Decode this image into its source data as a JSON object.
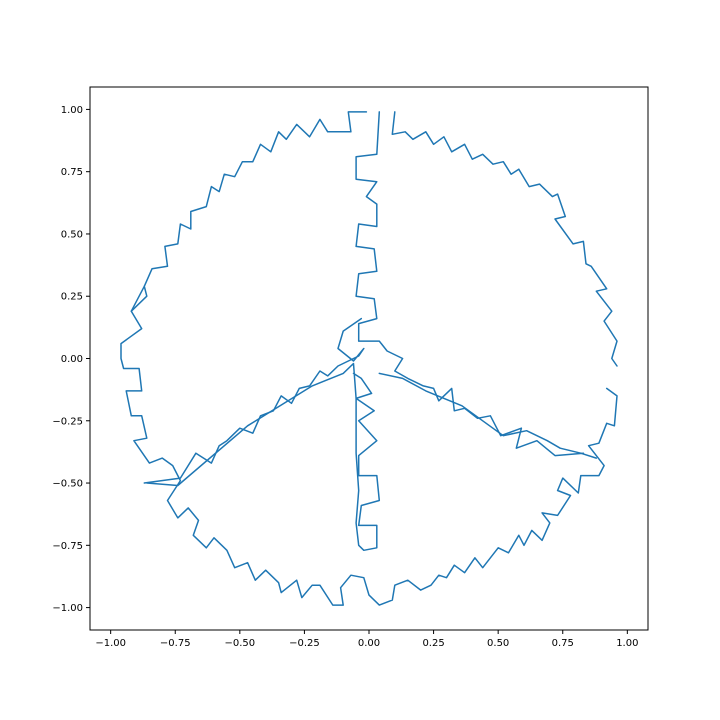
{
  "chart_data": {
    "type": "line",
    "title": "",
    "xlabel": "",
    "ylabel": "",
    "xlim": [
      -1.08,
      1.08
    ],
    "ylim": [
      -1.09,
      1.09
    ],
    "xticks": [
      -1.0,
      -0.75,
      -0.5,
      -0.25,
      0.0,
      0.25,
      0.5,
      0.75,
      1.0
    ],
    "yticks": [
      -1.0,
      -0.75,
      -0.5,
      -0.25,
      0.0,
      0.25,
      0.5,
      0.75,
      1.0
    ],
    "xtick_labels": [
      "−1.00",
      "−0.75",
      "−0.50",
      "−0.25",
      "0.00",
      "0.25",
      "0.50",
      "0.75",
      "1.00"
    ],
    "ytick_labels": [
      "−1.00",
      "−0.75",
      "−0.50",
      "−0.25",
      "0.00",
      "0.25",
      "0.50",
      "0.75",
      "1.00"
    ],
    "grid": false,
    "legend": "none",
    "series": [
      {
        "color": "#1f77b4",
        "points": [
          [
            -0.01,
            0.99
          ],
          [
            -0.08,
            0.99
          ],
          [
            -0.07,
            0.91
          ],
          [
            -0.16,
            0.91
          ],
          [
            -0.19,
            0.96
          ],
          [
            -0.23,
            0.89
          ],
          [
            -0.28,
            0.94
          ],
          [
            -0.32,
            0.88
          ],
          [
            -0.35,
            0.91
          ],
          [
            -0.38,
            0.83
          ],
          [
            -0.42,
            0.86
          ],
          [
            -0.45,
            0.79
          ],
          [
            -0.49,
            0.79
          ],
          [
            -0.52,
            0.73
          ],
          [
            -0.56,
            0.74
          ],
          [
            -0.58,
            0.67
          ],
          [
            -0.61,
            0.69
          ],
          [
            -0.63,
            0.61
          ],
          [
            -0.69,
            0.59
          ],
          [
            -0.69,
            0.52
          ],
          [
            -0.73,
            0.54
          ],
          [
            -0.74,
            0.46
          ],
          [
            -0.79,
            0.45
          ],
          [
            -0.78,
            0.37
          ],
          [
            -0.84,
            0.36
          ],
          [
            -0.87,
            0.29
          ],
          [
            -0.86,
            0.25
          ],
          [
            -0.92,
            0.19
          ],
          [
            -0.88,
            0.12
          ],
          [
            -0.96,
            0.06
          ],
          [
            -0.96,
            0.0
          ],
          [
            -0.95,
            -0.04
          ],
          [
            -0.89,
            -0.04
          ],
          [
            -0.88,
            -0.13
          ],
          [
            -0.94,
            -0.13
          ],
          [
            -0.92,
            -0.23
          ],
          [
            -0.88,
            -0.23
          ],
          [
            -0.86,
            -0.32
          ],
          [
            -0.91,
            -0.33
          ],
          [
            -0.85,
            -0.42
          ],
          [
            -0.8,
            -0.4
          ],
          [
            -0.76,
            -0.43
          ],
          [
            -0.73,
            -0.49
          ],
          [
            -0.78,
            -0.57
          ],
          [
            -0.74,
            -0.64
          ],
          [
            -0.7,
            -0.6
          ],
          [
            -0.66,
            -0.65
          ],
          [
            -0.68,
            -0.71
          ],
          [
            -0.63,
            -0.76
          ],
          [
            -0.6,
            -0.72
          ],
          [
            -0.55,
            -0.77
          ],
          [
            -0.52,
            -0.84
          ],
          [
            -0.47,
            -0.82
          ],
          [
            -0.44,
            -0.89
          ],
          [
            -0.4,
            -0.85
          ],
          [
            -0.35,
            -0.9
          ],
          [
            -0.34,
            -0.94
          ],
          [
            -0.28,
            -0.89
          ],
          [
            -0.26,
            -0.96
          ],
          [
            -0.22,
            -0.91
          ],
          [
            -0.19,
            -0.91
          ],
          [
            -0.14,
            -0.99
          ],
          [
            -0.1,
            -0.99
          ],
          [
            -0.11,
            -0.92
          ],
          [
            -0.07,
            -0.87
          ],
          [
            -0.02,
            -0.88
          ],
          [
            0.0,
            -0.95
          ],
          [
            0.04,
            -0.99
          ],
          [
            0.09,
            -0.97
          ],
          [
            0.1,
            -0.91
          ],
          [
            0.15,
            -0.89
          ],
          [
            0.2,
            -0.93
          ],
          [
            0.24,
            -0.91
          ],
          [
            0.27,
            -0.87
          ],
          [
            0.3,
            -0.88
          ],
          [
            0.33,
            -0.83
          ],
          [
            0.37,
            -0.86
          ],
          [
            0.41,
            -0.8
          ],
          [
            0.44,
            -0.84
          ],
          [
            0.5,
            -0.76
          ],
          [
            0.54,
            -0.78
          ],
          [
            0.58,
            -0.71
          ],
          [
            0.6,
            -0.75
          ],
          [
            0.63,
            -0.69
          ],
          [
            0.67,
            -0.73
          ],
          [
            0.7,
            -0.66
          ],
          [
            0.67,
            -0.62
          ],
          [
            0.73,
            -0.63
          ],
          [
            0.78,
            -0.55
          ],
          [
            0.73,
            -0.53
          ],
          [
            0.75,
            -0.48
          ],
          [
            0.81,
            -0.54
          ],
          [
            0.82,
            -0.47
          ],
          [
            0.89,
            -0.47
          ],
          [
            0.91,
            -0.43
          ],
          [
            0.85,
            -0.35
          ],
          [
            0.89,
            -0.34
          ],
          [
            0.92,
            -0.26
          ],
          [
            0.95,
            -0.27
          ],
          [
            0.96,
            -0.15
          ],
          [
            0.92,
            -0.12
          ]
        ]
      },
      {
        "color": "#1f77b4",
        "points": [
          [
            0.1,
            0.99
          ],
          [
            0.09,
            0.9
          ],
          [
            0.14,
            0.91
          ],
          [
            0.17,
            0.88
          ],
          [
            0.22,
            0.91
          ],
          [
            0.25,
            0.86
          ],
          [
            0.29,
            0.89
          ],
          [
            0.32,
            0.83
          ],
          [
            0.37,
            0.86
          ],
          [
            0.4,
            0.8
          ],
          [
            0.44,
            0.82
          ],
          [
            0.48,
            0.78
          ],
          [
            0.52,
            0.79
          ],
          [
            0.55,
            0.74
          ],
          [
            0.58,
            0.76
          ],
          [
            0.62,
            0.69
          ],
          [
            0.66,
            0.7
          ],
          [
            0.71,
            0.65
          ],
          [
            0.73,
            0.66
          ],
          [
            0.76,
            0.57
          ],
          [
            0.72,
            0.56
          ],
          [
            0.79,
            0.46
          ],
          [
            0.83,
            0.47
          ],
          [
            0.84,
            0.38
          ],
          [
            0.86,
            0.37
          ],
          [
            0.92,
            0.28
          ],
          [
            0.88,
            0.27
          ],
          [
            0.94,
            0.19
          ],
          [
            0.91,
            0.15
          ],
          [
            0.96,
            0.07
          ],
          [
            0.94,
            0.0
          ],
          [
            0.96,
            -0.03
          ]
        ]
      },
      {
        "color": "#1f77b4",
        "points": [
          [
            0.04,
            0.99
          ],
          [
            0.03,
            0.82
          ],
          [
            -0.05,
            0.81
          ],
          [
            -0.05,
            0.72
          ],
          [
            0.03,
            0.71
          ],
          [
            -0.01,
            0.65
          ],
          [
            0.03,
            0.62
          ],
          [
            0.03,
            0.53
          ],
          [
            -0.04,
            0.54
          ],
          [
            -0.05,
            0.45
          ],
          [
            0.02,
            0.44
          ],
          [
            0.03,
            0.35
          ],
          [
            -0.04,
            0.34
          ],
          [
            -0.05,
            0.25
          ],
          [
            0.02,
            0.24
          ],
          [
            0.03,
            0.16
          ],
          [
            -0.04,
            0.14
          ],
          [
            -0.04,
            0.07
          ],
          [
            0.04,
            0.07
          ],
          [
            0.07,
            0.03
          ],
          [
            0.13,
            0.0
          ],
          [
            0.1,
            -0.05
          ],
          [
            0.15,
            -0.08
          ],
          [
            0.21,
            -0.11
          ],
          [
            0.25,
            -0.12
          ],
          [
            0.27,
            -0.17
          ],
          [
            0.32,
            -0.12
          ],
          [
            0.33,
            -0.21
          ],
          [
            0.37,
            -0.2
          ],
          [
            0.42,
            -0.24
          ],
          [
            0.47,
            -0.23
          ],
          [
            0.51,
            -0.31
          ],
          [
            0.59,
            -0.28
          ],
          [
            0.57,
            -0.36
          ],
          [
            0.65,
            -0.33
          ],
          [
            0.72,
            -0.39
          ],
          [
            0.83,
            -0.38
          ]
        ]
      },
      {
        "color": "#1f77b4",
        "points": [
          [
            -0.03,
            0.16
          ],
          [
            -0.1,
            0.11
          ],
          [
            -0.12,
            0.04
          ],
          [
            -0.06,
            -0.01
          ],
          [
            -0.02,
            0.04
          ],
          [
            -0.04,
            0.01
          ],
          [
            -0.12,
            -0.03
          ],
          [
            -0.16,
            -0.07
          ],
          [
            -0.19,
            -0.05
          ],
          [
            -0.23,
            -0.11
          ],
          [
            -0.27,
            -0.12
          ],
          [
            -0.3,
            -0.18
          ],
          [
            -0.34,
            -0.15
          ],
          [
            -0.37,
            -0.21
          ],
          [
            -0.42,
            -0.23
          ],
          [
            -0.45,
            -0.3
          ],
          [
            -0.5,
            -0.28
          ],
          [
            -0.55,
            -0.33
          ],
          [
            -0.58,
            -0.35
          ],
          [
            -0.61,
            -0.42
          ],
          [
            -0.67,
            -0.38
          ],
          [
            -0.73,
            -0.48
          ],
          [
            -0.87,
            -0.5
          ]
        ]
      },
      {
        "color": "#1f77b4",
        "points": [
          [
            -0.86,
            -0.5
          ],
          [
            -0.74,
            -0.51
          ],
          [
            -0.47,
            -0.27
          ],
          [
            -0.22,
            -0.11
          ],
          [
            -0.1,
            -0.06
          ],
          [
            -0.06,
            -0.02
          ],
          [
            -0.05,
            -0.16
          ],
          [
            -0.05,
            -0.38
          ],
          [
            -0.04,
            -0.53
          ],
          [
            -0.05,
            -0.66
          ],
          [
            -0.04,
            -0.75
          ],
          [
            -0.02,
            -0.77
          ],
          [
            0.03,
            -0.76
          ],
          [
            0.03,
            -0.67
          ],
          [
            -0.04,
            -0.67
          ],
          [
            -0.03,
            -0.59
          ],
          [
            0.04,
            -0.57
          ],
          [
            0.03,
            -0.47
          ],
          [
            -0.04,
            -0.47
          ],
          [
            -0.04,
            -0.39
          ],
          [
            0.03,
            -0.33
          ],
          [
            -0.04,
            -0.25
          ],
          [
            0.02,
            -0.21
          ],
          [
            -0.05,
            -0.16
          ],
          [
            0.01,
            -0.14
          ],
          [
            -0.03,
            -0.08
          ],
          [
            -0.06,
            -0.06
          ]
        ]
      },
      {
        "color": "#1f77b4",
        "points": [
          [
            0.04,
            -0.06
          ],
          [
            0.13,
            -0.08
          ],
          [
            0.22,
            -0.13
          ],
          [
            0.36,
            -0.19
          ],
          [
            0.44,
            -0.25
          ],
          [
            0.52,
            -0.31
          ],
          [
            0.61,
            -0.29
          ],
          [
            0.69,
            -0.33
          ],
          [
            0.74,
            -0.36
          ],
          [
            0.82,
            -0.38
          ],
          [
            0.88,
            -0.4
          ]
        ]
      },
      {
        "color": "#1f77b4",
        "points": [
          [
            -0.87,
            0.29
          ],
          [
            -0.9,
            0.23
          ],
          [
            -0.92,
            0.19
          ]
        ]
      }
    ]
  }
}
